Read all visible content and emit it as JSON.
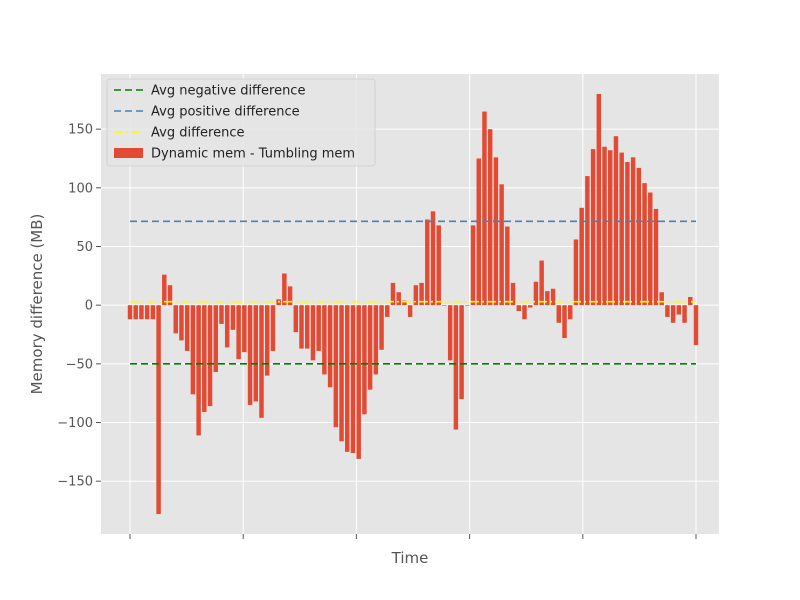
{
  "chart_data": {
    "type": "bar",
    "title": "",
    "xlabel": "Time",
    "ylabel": "Memory difference (MB)",
    "ylim": [
      -195,
      197
    ],
    "yticks": [
      -150,
      -100,
      -50,
      0,
      50,
      100,
      150
    ],
    "ytick_labels": [
      "−150",
      "−100",
      "−50",
      "0",
      "50",
      "100",
      "150"
    ],
    "xticks_shown": 6,
    "grid": true,
    "legend_position": "upper-left",
    "values": [
      -12,
      -12,
      -12,
      -12,
      -12,
      -178,
      26,
      17,
      -24,
      -30,
      -39,
      -76,
      -111,
      -91,
      -86,
      -57,
      -16,
      -36,
      -21,
      -46,
      -40,
      -85,
      -82,
      -96,
      -60,
      -39,
      5,
      27,
      16,
      -23,
      -37,
      -37,
      -47,
      -39,
      -59,
      -70,
      -104,
      -116,
      -125,
      -126,
      -131,
      -93,
      -72,
      -59,
      -38,
      -10,
      19,
      11,
      4,
      -10,
      17,
      19,
      73,
      80,
      68,
      0,
      -47,
      -106,
      -80,
      0,
      68,
      125,
      165,
      150,
      126,
      103,
      67,
      19,
      -5,
      -12,
      -2,
      20,
      38,
      12,
      14,
      -15,
      -28,
      -12,
      56,
      83,
      110,
      133,
      180,
      135,
      132,
      144,
      130,
      122,
      126,
      117,
      104,
      96,
      82,
      11,
      -10,
      -15,
      -8,
      -15,
      7,
      -34
    ],
    "series": [
      {
        "name": "Avg negative difference",
        "kind": "hline",
        "value": -50,
        "color": "#008000",
        "style": "dashed"
      },
      {
        "name": "Avg positive difference",
        "kind": "hline",
        "value": 71.5,
        "color": "#4682b4",
        "style": "dashed"
      },
      {
        "name": "Avg difference",
        "kind": "hline",
        "value": 3,
        "color": "#ffff00",
        "style": "dashdot"
      },
      {
        "name": "Dynamic mem - Tumbling mem",
        "kind": "bar",
        "color": "#e24a33"
      }
    ],
    "colors": {
      "background": "#e5e5e5",
      "grid": "#ffffff",
      "bar": "#e24a33"
    }
  }
}
